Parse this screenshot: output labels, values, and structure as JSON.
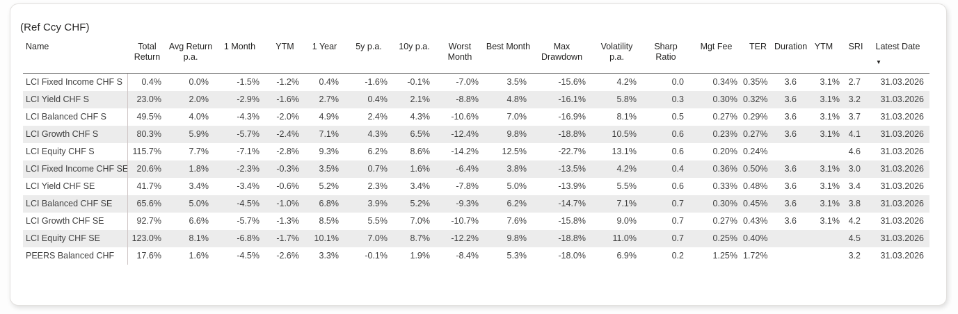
{
  "chart_data": {
    "type": "table",
    "title": "(Ref Ccy CHF)",
    "sort": {
      "column": "Latest Date",
      "direction": "descending"
    },
    "sort_descending_icon": "▼",
    "columns": [
      "Name",
      "Total Return",
      "Avg Return p.a.",
      "1 Month",
      "YTM",
      "1 Year",
      "5y p.a.",
      "10y p.a.",
      "Worst Month",
      "Best Month",
      "Max Drawdown",
      "Volatility p.a.",
      "Sharp Ratio",
      "Mgt Fee",
      "TER",
      "Duration",
      "YTM",
      "SRI",
      "Latest Date"
    ],
    "rows": [
      [
        "LCI Fixed Income CHF S",
        "0.4%",
        "0.0%",
        "-1.5%",
        "-1.2%",
        "0.4%",
        "-1.6%",
        "-0.1%",
        "-7.0%",
        "3.5%",
        "-15.6%",
        "4.2%",
        "0.0",
        "0.34%",
        "0.35%",
        "3.6",
        "3.1%",
        "2.7",
        "31.03.2026"
      ],
      [
        "LCI Yield CHF S",
        "23.0%",
        "2.0%",
        "-2.9%",
        "-1.6%",
        "2.7%",
        "0.4%",
        "2.1%",
        "-8.8%",
        "4.8%",
        "-16.1%",
        "5.8%",
        "0.3",
        "0.30%",
        "0.32%",
        "3.6",
        "3.1%",
        "3.2",
        "31.03.2026"
      ],
      [
        "LCI Balanced CHF S",
        "49.5%",
        "4.0%",
        "-4.3%",
        "-2.0%",
        "4.9%",
        "2.4%",
        "4.3%",
        "-10.6%",
        "7.0%",
        "-16.9%",
        "8.1%",
        "0.5",
        "0.27%",
        "0.29%",
        "3.6",
        "3.1%",
        "3.7",
        "31.03.2026"
      ],
      [
        "LCI Growth CHF S",
        "80.3%",
        "5.9%",
        "-5.7%",
        "-2.4%",
        "7.1%",
        "4.3%",
        "6.5%",
        "-12.4%",
        "9.8%",
        "-18.8%",
        "10.5%",
        "0.6",
        "0.23%",
        "0.27%",
        "3.6",
        "3.1%",
        "4.1",
        "31.03.2026"
      ],
      [
        "LCI Equity CHF S",
        "115.7%",
        "7.7%",
        "-7.1%",
        "-2.8%",
        "9.3%",
        "6.2%",
        "8.6%",
        "-14.2%",
        "12.5%",
        "-22.7%",
        "13.1%",
        "0.6",
        "0.20%",
        "0.24%",
        "",
        "",
        "4.6",
        "31.03.2026"
      ],
      [
        "LCI Fixed Income CHF SE",
        "20.6%",
        "1.8%",
        "-2.3%",
        "-0.3%",
        "3.5%",
        "0.7%",
        "1.6%",
        "-6.4%",
        "3.8%",
        "-13.5%",
        "4.2%",
        "0.4",
        "0.36%",
        "0.50%",
        "3.6",
        "3.1%",
        "3.0",
        "31.03.2026"
      ],
      [
        "LCI Yield CHF SE",
        "41.7%",
        "3.4%",
        "-3.4%",
        "-0.6%",
        "5.2%",
        "2.3%",
        "3.4%",
        "-7.8%",
        "5.0%",
        "-13.9%",
        "5.5%",
        "0.6",
        "0.33%",
        "0.48%",
        "3.6",
        "3.1%",
        "3.4",
        "31.03.2026"
      ],
      [
        "LCI Balanced CHF SE",
        "65.6%",
        "5.0%",
        "-4.5%",
        "-1.0%",
        "6.8%",
        "3.9%",
        "5.2%",
        "-9.3%",
        "6.2%",
        "-14.7%",
        "7.1%",
        "0.7",
        "0.30%",
        "0.45%",
        "3.6",
        "3.1%",
        "3.8",
        "31.03.2026"
      ],
      [
        "LCI Growth CHF SE",
        "92.7%",
        "6.6%",
        "-5.7%",
        "-1.3%",
        "8.5%",
        "5.5%",
        "7.0%",
        "-10.7%",
        "7.6%",
        "-15.8%",
        "9.0%",
        "0.7",
        "0.27%",
        "0.43%",
        "3.6",
        "3.1%",
        "4.2",
        "31.03.2026"
      ],
      [
        "LCI Equity CHF SE",
        "123.0%",
        "8.1%",
        "-6.8%",
        "-1.7%",
        "10.1%",
        "7.0%",
        "8.7%",
        "-12.2%",
        "9.8%",
        "-18.8%",
        "11.0%",
        "0.7",
        "0.25%",
        "0.40%",
        "",
        "",
        "4.5",
        "31.03.2026"
      ],
      [
        "PEERS Balanced CHF",
        "17.6%",
        "1.6%",
        "-4.5%",
        "-2.6%",
        "3.3%",
        "-0.1%",
        "1.9%",
        "-8.4%",
        "5.3%",
        "-18.0%",
        "6.9%",
        "0.2",
        "1.25%",
        "1.72%",
        "",
        "",
        "3.2",
        "31.03.2026"
      ]
    ],
    "colors": {
      "stripe": "#ececec",
      "header_underline": "#6f6f6f",
      "name_separator": "#cfc6c6",
      "text": "#3f3f3f"
    }
  }
}
